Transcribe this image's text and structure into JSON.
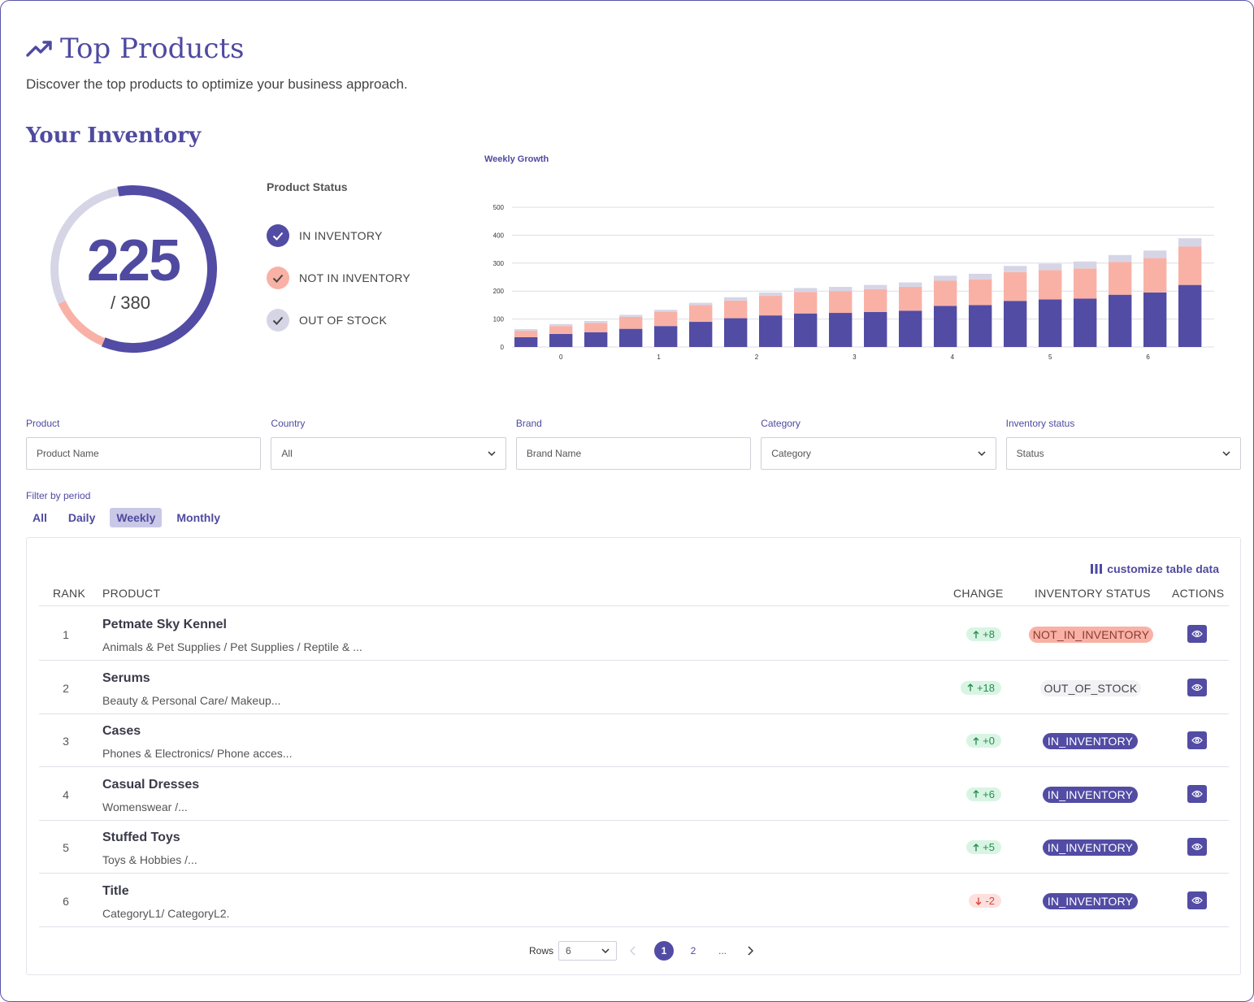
{
  "header": {
    "title": "Top Products",
    "subtitle": "Discover the top products to optimize your business approach.",
    "trend_icon": "trending-up-icon"
  },
  "inventory": {
    "section_title": "Your Inventory",
    "in_count": "225",
    "total_label": "/ 380",
    "donut": {
      "total": 380,
      "in_inventory": 225,
      "not_in_inventory": 45,
      "out_of_stock": 110
    },
    "colors": {
      "in_inventory": "#524ca4",
      "not_in_inventory": "#f9b1a6",
      "out_of_stock": "#d6d5e6"
    },
    "legend_title": "Product Status",
    "legend": [
      {
        "label": "IN INVENTORY",
        "color": "#524ca4",
        "check": "#ffffff"
      },
      {
        "label": "NOT IN INVENTORY",
        "color": "#f9b1a6",
        "check": "#444444"
      },
      {
        "label": "OUT OF STOCK",
        "color": "#d6d5e6",
        "check": "#444444"
      }
    ]
  },
  "chart_data": {
    "type": "bar",
    "stacked": true,
    "title": "Weekly Growth",
    "xlabel": "",
    "ylabel": "",
    "ylim": [
      0,
      500
    ],
    "yticks": [
      0,
      100,
      200,
      300,
      400,
      500
    ],
    "xtick_labels": [
      "0",
      "1",
      "2",
      "3",
      "4",
      "5",
      "6"
    ],
    "xtick_at_bar": [
      1.5,
      4.3,
      7.1,
      9.9,
      12.7,
      15.5,
      18.3
    ],
    "grid": true,
    "series": [
      {
        "color": "#524ca4",
        "values": [
          35,
          47,
          53,
          65,
          75,
          90,
          103,
          113,
          120,
          122,
          125,
          130,
          147,
          150,
          165,
          170,
          173,
          187,
          195,
          222
        ]
      },
      {
        "color": "#f9b1a6",
        "values": [
          23,
          28,
          33,
          43,
          50,
          60,
          63,
          70,
          77,
          78,
          82,
          85,
          90,
          92,
          103,
          105,
          108,
          117,
          123,
          137
        ]
      },
      {
        "color": "#d6d5e6",
        "values": [
          6,
          7,
          7,
          7,
          8,
          8,
          12,
          12,
          14,
          15,
          15,
          16,
          18,
          20,
          22,
          23,
          25,
          25,
          27,
          30
        ]
      }
    ]
  },
  "filters": [
    {
      "label": "Product",
      "value": "Product Name",
      "dropdown": false
    },
    {
      "label": "Country",
      "value": "All",
      "dropdown": true
    },
    {
      "label": "Brand",
      "value": "Brand Name",
      "dropdown": false
    },
    {
      "label": "Category",
      "value": "Category",
      "dropdown": true
    },
    {
      "label": "Inventory status",
      "value": "Status",
      "dropdown": true
    }
  ],
  "period": {
    "label": "Filter by period",
    "tabs": [
      "All",
      "Daily",
      "Weekly",
      "Monthly"
    ],
    "active": "Weekly"
  },
  "table": {
    "customize_label": "customize table data",
    "headers": {
      "rank": "RANK",
      "product": "PRODUCT",
      "change": "CHANGE",
      "status": "INVENTORY STATUS",
      "actions": "ACTIONS"
    },
    "rows": [
      {
        "rank": "1",
        "name": "Petmate Sky Kennel",
        "category": "Animals & Pet Supplies / Pet Supplies / Reptile & ...",
        "change": "+8",
        "direction": "up",
        "status": "NOT_IN_INVENTORY"
      },
      {
        "rank": "2",
        "name": "Serums",
        "category": "Beauty & Personal Care/ Makeup...",
        "change": "+18",
        "direction": "up",
        "status": "OUT_OF_STOCK"
      },
      {
        "rank": "3",
        "name": "Cases",
        "category": "Phones & Electronics/ Phone acces...",
        "change": "+0",
        "direction": "up",
        "status": "IN_INVENTORY"
      },
      {
        "rank": "4",
        "name": "Casual Dresses",
        "category": "Womenswear /...",
        "change": "+6",
        "direction": "up",
        "status": "IN_INVENTORY"
      },
      {
        "rank": "5",
        "name": "Stuffed Toys",
        "category": "Toys & Hobbies /...",
        "change": "+5",
        "direction": "up",
        "status": "IN_INVENTORY"
      },
      {
        "rank": "6",
        "name": "Title",
        "category": "CategoryL1/ CategoryL2.",
        "change": "-2",
        "direction": "down",
        "status": "IN_INVENTORY"
      }
    ]
  },
  "pagination": {
    "rows_label": "Rows",
    "rows_value": "6",
    "pages": [
      "1",
      "2",
      "..."
    ],
    "current": "1"
  }
}
